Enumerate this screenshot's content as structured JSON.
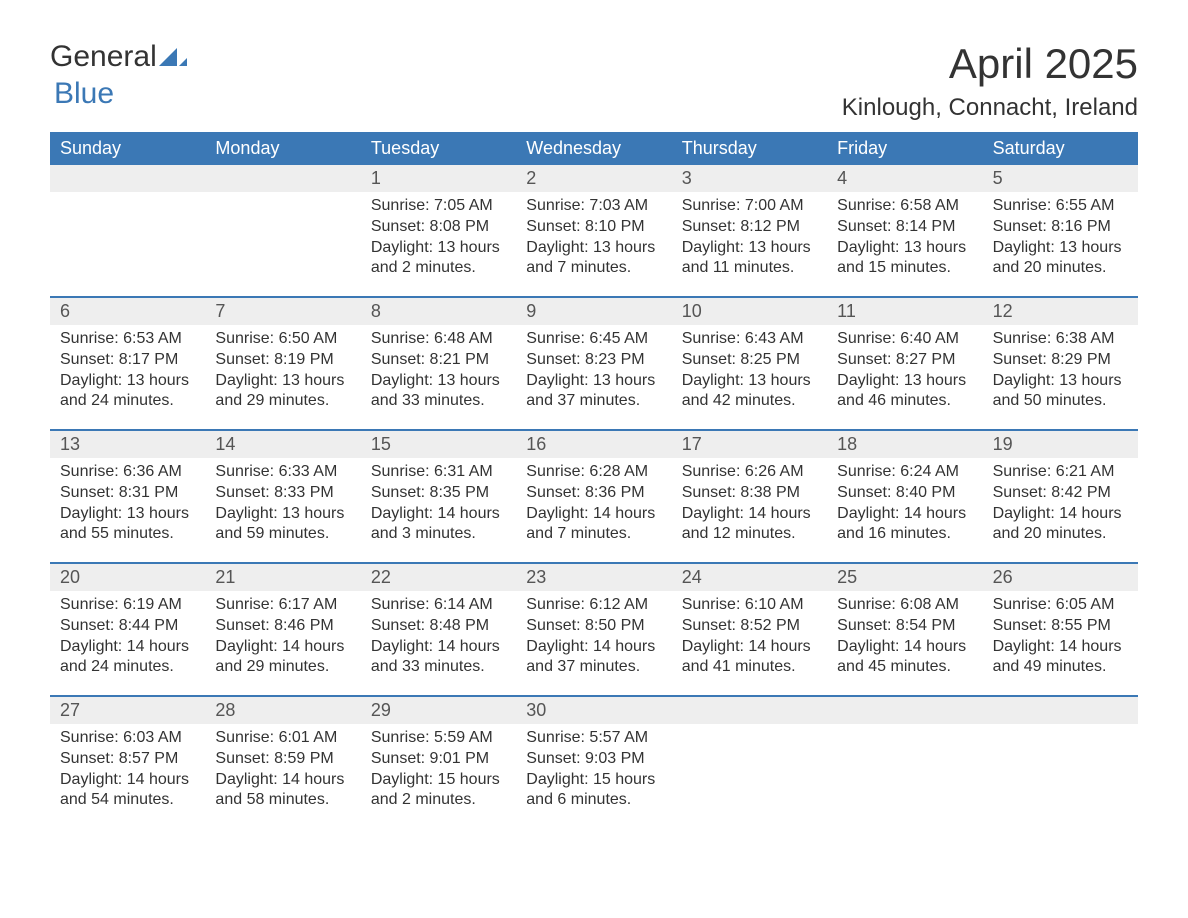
{
  "logo": {
    "word1": "General",
    "word2": "Blue"
  },
  "title": "April 2025",
  "location": "Kinlough, Connacht, Ireland",
  "colors": {
    "header_bg": "#3b78b5",
    "header_text": "#ffffff",
    "date_row_bg": "#eeeeee",
    "week_border": "#3b78b5",
    "body_text": "#333333",
    "logo_blue": "#3b78b5"
  },
  "day_names": [
    "Sunday",
    "Monday",
    "Tuesday",
    "Wednesday",
    "Thursday",
    "Friday",
    "Saturday"
  ],
  "weeks": [
    {
      "dates": [
        "",
        "",
        "1",
        "2",
        "3",
        "4",
        "5"
      ],
      "cells": [
        [],
        [],
        [
          "Sunrise: 7:05 AM",
          "Sunset: 8:08 PM",
          "Daylight: 13 hours",
          "and 2 minutes."
        ],
        [
          "Sunrise: 7:03 AM",
          "Sunset: 8:10 PM",
          "Daylight: 13 hours",
          "and 7 minutes."
        ],
        [
          "Sunrise: 7:00 AM",
          "Sunset: 8:12 PM",
          "Daylight: 13 hours",
          "and 11 minutes."
        ],
        [
          "Sunrise: 6:58 AM",
          "Sunset: 8:14 PM",
          "Daylight: 13 hours",
          "and 15 minutes."
        ],
        [
          "Sunrise: 6:55 AM",
          "Sunset: 8:16 PM",
          "Daylight: 13 hours",
          "and 20 minutes."
        ]
      ]
    },
    {
      "dates": [
        "6",
        "7",
        "8",
        "9",
        "10",
        "11",
        "12"
      ],
      "cells": [
        [
          "Sunrise: 6:53 AM",
          "Sunset: 8:17 PM",
          "Daylight: 13 hours",
          "and 24 minutes."
        ],
        [
          "Sunrise: 6:50 AM",
          "Sunset: 8:19 PM",
          "Daylight: 13 hours",
          "and 29 minutes."
        ],
        [
          "Sunrise: 6:48 AM",
          "Sunset: 8:21 PM",
          "Daylight: 13 hours",
          "and 33 minutes."
        ],
        [
          "Sunrise: 6:45 AM",
          "Sunset: 8:23 PM",
          "Daylight: 13 hours",
          "and 37 minutes."
        ],
        [
          "Sunrise: 6:43 AM",
          "Sunset: 8:25 PM",
          "Daylight: 13 hours",
          "and 42 minutes."
        ],
        [
          "Sunrise: 6:40 AM",
          "Sunset: 8:27 PM",
          "Daylight: 13 hours",
          "and 46 minutes."
        ],
        [
          "Sunrise: 6:38 AM",
          "Sunset: 8:29 PM",
          "Daylight: 13 hours",
          "and 50 minutes."
        ]
      ]
    },
    {
      "dates": [
        "13",
        "14",
        "15",
        "16",
        "17",
        "18",
        "19"
      ],
      "cells": [
        [
          "Sunrise: 6:36 AM",
          "Sunset: 8:31 PM",
          "Daylight: 13 hours",
          "and 55 minutes."
        ],
        [
          "Sunrise: 6:33 AM",
          "Sunset: 8:33 PM",
          "Daylight: 13 hours",
          "and 59 minutes."
        ],
        [
          "Sunrise: 6:31 AM",
          "Sunset: 8:35 PM",
          "Daylight: 14 hours",
          "and 3 minutes."
        ],
        [
          "Sunrise: 6:28 AM",
          "Sunset: 8:36 PM",
          "Daylight: 14 hours",
          "and 7 minutes."
        ],
        [
          "Sunrise: 6:26 AM",
          "Sunset: 8:38 PM",
          "Daylight: 14 hours",
          "and 12 minutes."
        ],
        [
          "Sunrise: 6:24 AM",
          "Sunset: 8:40 PM",
          "Daylight: 14 hours",
          "and 16 minutes."
        ],
        [
          "Sunrise: 6:21 AM",
          "Sunset: 8:42 PM",
          "Daylight: 14 hours",
          "and 20 minutes."
        ]
      ]
    },
    {
      "dates": [
        "20",
        "21",
        "22",
        "23",
        "24",
        "25",
        "26"
      ],
      "cells": [
        [
          "Sunrise: 6:19 AM",
          "Sunset: 8:44 PM",
          "Daylight: 14 hours",
          "and 24 minutes."
        ],
        [
          "Sunrise: 6:17 AM",
          "Sunset: 8:46 PM",
          "Daylight: 14 hours",
          "and 29 minutes."
        ],
        [
          "Sunrise: 6:14 AM",
          "Sunset: 8:48 PM",
          "Daylight: 14 hours",
          "and 33 minutes."
        ],
        [
          "Sunrise: 6:12 AM",
          "Sunset: 8:50 PM",
          "Daylight: 14 hours",
          "and 37 minutes."
        ],
        [
          "Sunrise: 6:10 AM",
          "Sunset: 8:52 PM",
          "Daylight: 14 hours",
          "and 41 minutes."
        ],
        [
          "Sunrise: 6:08 AM",
          "Sunset: 8:54 PM",
          "Daylight: 14 hours",
          "and 45 minutes."
        ],
        [
          "Sunrise: 6:05 AM",
          "Sunset: 8:55 PM",
          "Daylight: 14 hours",
          "and 49 minutes."
        ]
      ]
    },
    {
      "dates": [
        "27",
        "28",
        "29",
        "30",
        "",
        "",
        ""
      ],
      "cells": [
        [
          "Sunrise: 6:03 AM",
          "Sunset: 8:57 PM",
          "Daylight: 14 hours",
          "and 54 minutes."
        ],
        [
          "Sunrise: 6:01 AM",
          "Sunset: 8:59 PM",
          "Daylight: 14 hours",
          "and 58 minutes."
        ],
        [
          "Sunrise: 5:59 AM",
          "Sunset: 9:01 PM",
          "Daylight: 15 hours",
          "and 2 minutes."
        ],
        [
          "Sunrise: 5:57 AM",
          "Sunset: 9:03 PM",
          "Daylight: 15 hours",
          "and 6 minutes."
        ],
        [],
        [],
        []
      ]
    }
  ]
}
